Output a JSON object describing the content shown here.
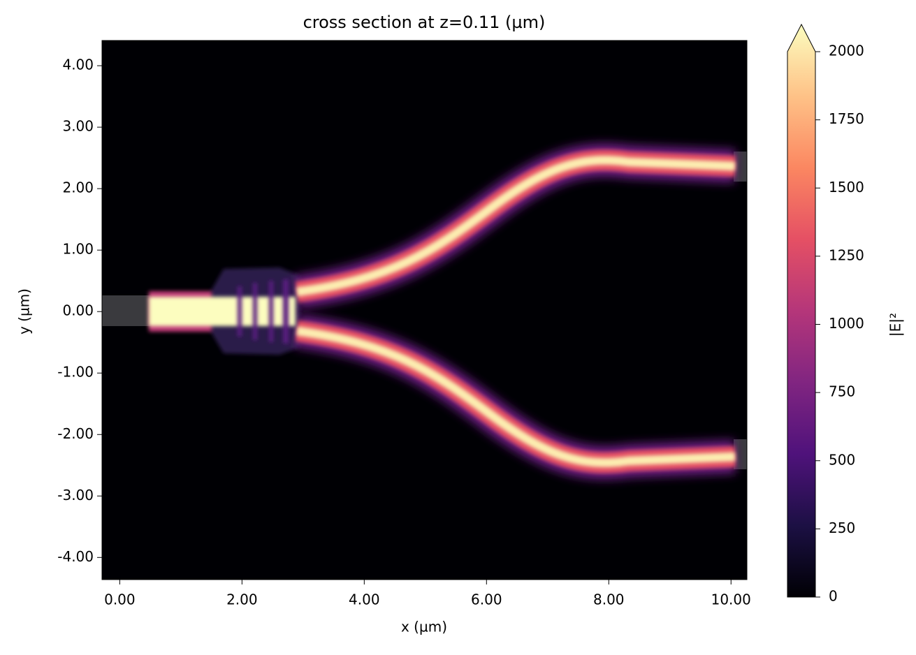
{
  "chart_data": {
    "type": "heatmap",
    "title": "cross section at z=0.11 (µm)",
    "x_label": "x (µm)",
    "y_label": "y (µm)",
    "xlim": [
      -0.29,
      10.26
    ],
    "ylim": [
      -4.36,
      4.41
    ],
    "xticks": [
      {
        "value": 0,
        "label": "0.00"
      },
      {
        "value": 2,
        "label": "2.00"
      },
      {
        "value": 4,
        "label": "4.00"
      },
      {
        "value": 6,
        "label": "6.00"
      },
      {
        "value": 8,
        "label": "8.00"
      },
      {
        "value": 10,
        "label": "10.00"
      }
    ],
    "yticks": [
      {
        "value": -4,
        "label": "-4.00"
      },
      {
        "value": -3,
        "label": "-3.00"
      },
      {
        "value": -2,
        "label": "-2.00"
      },
      {
        "value": -1,
        "label": "-1.00"
      },
      {
        "value": 0,
        "label": "0.00"
      },
      {
        "value": 1,
        "label": "1.00"
      },
      {
        "value": 2,
        "label": "2.00"
      },
      {
        "value": 3,
        "label": "3.00"
      },
      {
        "value": 4,
        "label": "4.00"
      }
    ],
    "colorbar": {
      "label": "|E|²",
      "lim": [
        0,
        2000
      ],
      "ticks": [
        0,
        250,
        500,
        750,
        1000,
        1250,
        1500,
        1750,
        2000
      ],
      "extend": "max",
      "colors": [
        "#000004",
        "#1c1044",
        "#4f127b",
        "#812581",
        "#b5367a",
        "#e55064",
        "#fb8761",
        "#fec287",
        "#fcfdbf"
      ]
    }
  }
}
